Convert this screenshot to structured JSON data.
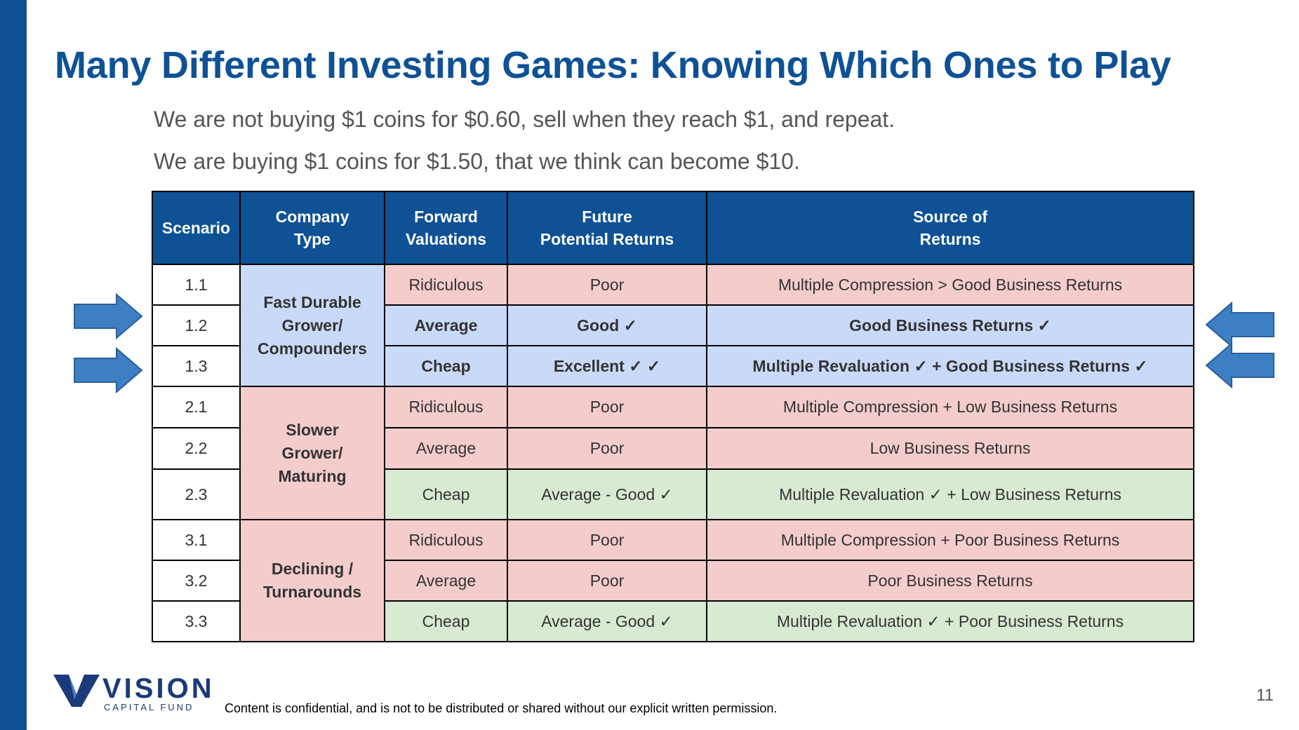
{
  "title": "Many Different Investing Games: Knowing Which Ones to Play",
  "subtitle1": "We are not buying $1 coins for $0.60, sell when they reach $1, and repeat.",
  "subtitle2": "We are buying $1 coins for $1.50, that we think can become $10.",
  "headers": {
    "scenario": "Scenario",
    "company_type_1": "Company",
    "company_type_2": "Type",
    "valuation_1": "Forward",
    "valuation_2": "Valuations",
    "returns_1": "Future",
    "returns_2": "Potential Returns",
    "source_1": "Source of",
    "source_2": "Returns"
  },
  "groups": [
    {
      "line1": "Fast Durable",
      "line2": "Grower/",
      "line3": "Compounders"
    },
    {
      "line1": "Slower",
      "line2": "Grower/",
      "line3": "Maturing"
    },
    {
      "line1": "Declining /",
      "line2": "Turnarounds"
    }
  ],
  "rows": [
    {
      "scenario": "1.1",
      "valuation": "Ridiculous",
      "returns": "Poor",
      "source": "Multiple Compression > Good Business Returns"
    },
    {
      "scenario": "1.2",
      "valuation": "Average",
      "returns": "Good ✓",
      "source": "Good Business Returns ✓"
    },
    {
      "scenario": "1.3",
      "valuation": "Cheap",
      "returns": "Excellent ✓ ✓",
      "source": "Multiple Revaluation ✓  + Good Business Returns ✓"
    },
    {
      "scenario": "2.1",
      "valuation": "Ridiculous",
      "returns": "Poor",
      "source": "Multiple Compression + Low Business Returns"
    },
    {
      "scenario": "2.2",
      "valuation": "Average",
      "returns": "Poor",
      "source": "Low Business Returns"
    },
    {
      "scenario": "2.3",
      "valuation": "Cheap",
      "returns": "Average - Good ✓",
      "source": "Multiple Revaluation ✓  + Low Business Returns"
    },
    {
      "scenario": "3.1",
      "valuation": "Ridiculous",
      "returns": "Poor",
      "source": "Multiple Compression + Poor Business Returns"
    },
    {
      "scenario": "3.2",
      "valuation": "Average",
      "returns": "Poor",
      "source": "Poor Business Returns"
    },
    {
      "scenario": "3.3",
      "valuation": "Cheap",
      "returns": "Average - Good ✓",
      "source": "Multiple Revaluation ✓  + Poor Business Returns"
    }
  ],
  "logo": {
    "word": "VISION",
    "sub": "CAPITAL FUND"
  },
  "footer": "Content is confidential, and is not to be distributed or shared without our explicit written permission.",
  "page_number": "11",
  "colors": {
    "brand": "#0e5195",
    "blue_cell": "#c9daf8",
    "pink_cell": "#f4cccc",
    "green_cell": "#d9ead3",
    "arrow": "#3d7fc4"
  }
}
